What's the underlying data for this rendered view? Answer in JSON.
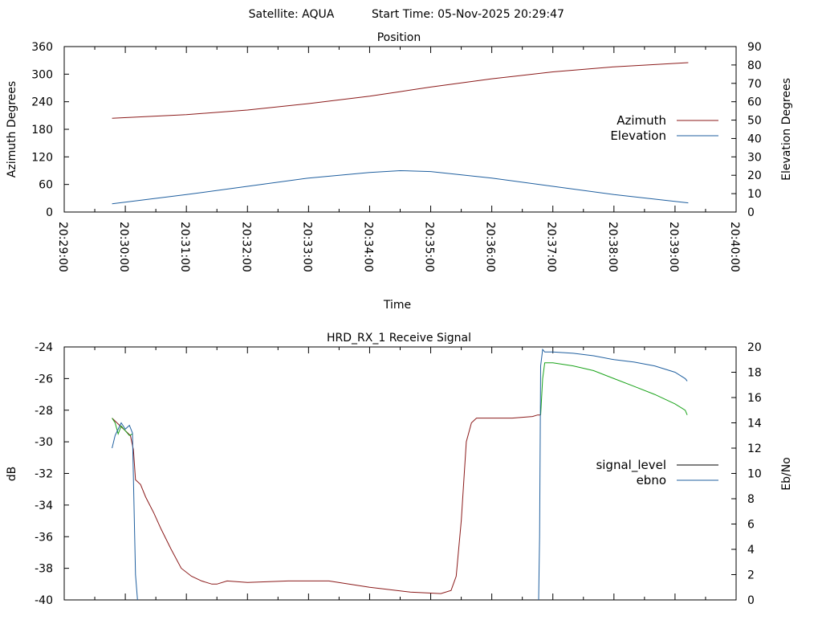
{
  "header": {
    "satellite": "Satellite: AQUA",
    "start_time": "Start Time: 05-Nov-2025 20:29:47"
  },
  "chart_data": [
    {
      "type": "line",
      "title": "Position",
      "xlabel": "Time",
      "ylabel": "Azimuth Degrees",
      "y2label": "Elevation Degrees",
      "xlim": [
        0,
        660
      ],
      "ylim": [
        0,
        360
      ],
      "y2lim": [
        0,
        90
      ],
      "grid": false,
      "legend": "right",
      "x_tick_labels": [
        "20:29:00",
        "20:30:00",
        "20:31:00",
        "20:32:00",
        "20:33:00",
        "20:34:00",
        "20:35:00",
        "20:36:00",
        "20:37:00",
        "20:38:00",
        "20:39:00",
        "20:40:00"
      ],
      "y_ticks": [
        0,
        60,
        120,
        180,
        240,
        300,
        360
      ],
      "y2_ticks": [
        0,
        10,
        20,
        30,
        40,
        50,
        60,
        70,
        80,
        90
      ],
      "series": [
        {
          "name": "Azimuth",
          "axis": "y",
          "color": "#8b1a1a",
          "x": [
            47,
            120,
            180,
            240,
            300,
            330,
            360,
            420,
            480,
            540,
            613
          ],
          "y": [
            204,
            212,
            222,
            236,
            252,
            262,
            272,
            290,
            305,
            316,
            325
          ]
        },
        {
          "name": "Elevation",
          "axis": "y2",
          "color": "#1f5f9f",
          "x": [
            47,
            120,
            180,
            240,
            300,
            330,
            360,
            420,
            480,
            540,
            613
          ],
          "y": [
            4.5,
            9.5,
            14,
            18.5,
            21.5,
            22.5,
            22,
            18.5,
            14,
            9.5,
            5
          ]
        }
      ]
    },
    {
      "type": "line",
      "title": "HRD_RX_1 Receive Signal",
      "xlabel": "",
      "ylabel": "dB",
      "y2label": "Eb/No",
      "xlim": [
        0,
        660
      ],
      "ylim": [
        -40,
        -24
      ],
      "y2lim": [
        0,
        20
      ],
      "grid": false,
      "legend": "right",
      "y_ticks": [
        -40,
        -38,
        -36,
        -34,
        -32,
        -30,
        -28,
        -26,
        -24
      ],
      "y2_ticks": [
        0,
        2,
        4,
        6,
        8,
        10,
        12,
        14,
        16,
        18,
        20
      ],
      "series": [
        {
          "name": "signal_level",
          "axis": "y",
          "color": "#000000",
          "segments": [
            {
              "color": "#8b1a1a",
              "x": [
                47,
                55,
                60,
                65,
                68,
                70,
                75,
                80,
                88,
                95,
                105,
                115,
                125,
                135,
                145,
                150,
                160,
                180,
                220,
                260,
                300,
                340,
                370,
                380,
                385,
                390,
                395,
                400,
                405,
                420,
                440,
                460,
                465,
                468
              ],
              "y": [
                -28.5,
                -29.0,
                -29.3,
                -29.6,
                -30.5,
                -32.4,
                -32.7,
                -33.5,
                -34.5,
                -35.5,
                -36.8,
                -38.0,
                -38.5,
                -38.8,
                -39.0,
                -39.0,
                -38.8,
                -38.9,
                -38.8,
                -38.8,
                -39.2,
                -39.5,
                -39.6,
                -39.4,
                -38.5,
                -35.0,
                -30.0,
                -28.8,
                -28.5,
                -28.5,
                -28.5,
                -28.4,
                -28.3,
                -28.3
              ]
            },
            {
              "color": "#19a319",
              "x": [
                468,
                470,
                472,
                480,
                500,
                520,
                540,
                560,
                580,
                600,
                610,
                612
              ],
              "y": [
                -28.3,
                -26.0,
                -25.0,
                -25.0,
                -25.2,
                -25.5,
                -26.0,
                -26.5,
                -27.0,
                -27.6,
                -28.0,
                -28.3
              ]
            },
            {
              "color": "#19a319",
              "x": [
                47,
                50,
                53,
                56,
                60,
                64,
                67
              ],
              "y": [
                -28.5,
                -28.8,
                -29.5,
                -29.0,
                -29.3,
                -29.6,
                -29.5
              ]
            }
          ]
        },
        {
          "name": "ebno",
          "axis": "y2",
          "color": "#1f5f9f",
          "segments": [
            {
              "x": [
                47,
                50,
                53,
                56,
                60,
                64,
                67,
                70,
                72
              ],
              "y": [
                12.0,
                13.0,
                13.5,
                14.0,
                13.5,
                13.8,
                13.2,
                2.0,
                0
              ]
            },
            {
              "x": [
                466,
                467,
                468,
                470,
                472,
                480,
                500,
                520,
                540,
                560,
                580,
                600,
                610,
                612
              ],
              "y": [
                0,
                5.0,
                18.5,
                19.8,
                19.6,
                19.6,
                19.5,
                19.3,
                19.0,
                18.8,
                18.5,
                18.0,
                17.5,
                17.3
              ]
            }
          ]
        }
      ]
    }
  ]
}
